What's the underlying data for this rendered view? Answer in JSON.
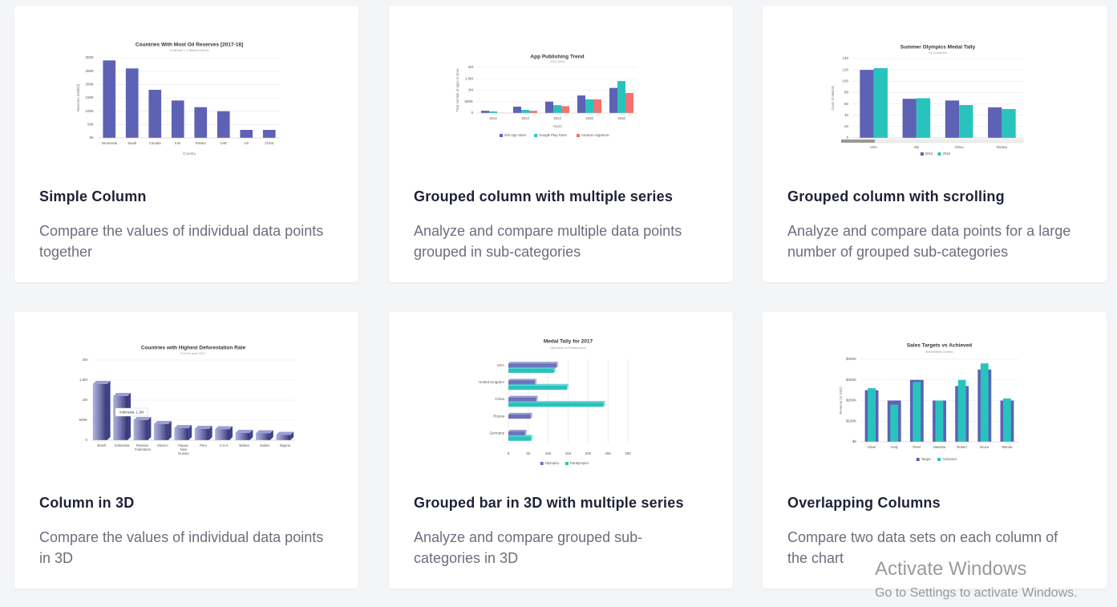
{
  "cards": [
    {
      "title": "Simple Column",
      "description": "Compare the values of individual data points together",
      "chart": {
        "type": "column",
        "title": "Countries With Most Oil Reserves [2017-18]",
        "subtitle": "In MMbbl = 1 Million barrels",
        "y_label": "Reserves (MMbbl)",
        "x_label": "Country",
        "categories": [
          "Venezuela",
          "Saudi",
          "Canada",
          "Iran",
          "Russia",
          "UAE",
          "US",
          "China"
        ],
        "values": [
          290000,
          260000,
          180000,
          140000,
          115000,
          100000,
          30000,
          30000
        ],
        "color": "#5d62b5",
        "ylim": [
          0,
          300000
        ],
        "yticks": [
          {
            "value": 0,
            "label": "0K"
          },
          {
            "value": 50000,
            "label": "50K"
          },
          {
            "value": 100000,
            "label": "100K"
          },
          {
            "value": 150000,
            "label": "150K"
          },
          {
            "value": 200000,
            "label": "200K"
          },
          {
            "value": 250000,
            "label": "250K"
          },
          {
            "value": 300000,
            "label": "300K"
          }
        ],
        "grid": true
      }
    },
    {
      "title": "Grouped column with multiple series",
      "description": "Analyze and compare multiple data points grouped in sub-categories",
      "chart": {
        "type": "column",
        "title": "App Publishing Trend",
        "subtitle": "2012-2016",
        "y_label": "Total number of apps in store",
        "x_label": "Years",
        "categories": [
          "2012",
          "2013",
          "2014",
          "2015",
          "2016"
        ],
        "series": [
          {
            "name": "iOS App Store",
            "color": "#5d62b5",
            "values": [
              100000,
              280000,
              500000,
              770000,
              1100000
            ]
          },
          {
            "name": "Google Play Store",
            "color": "#29c3be",
            "values": [
              70000,
              140000,
              350000,
              600000,
              1400000
            ]
          },
          {
            "name": "Amazon AppStore",
            "color": "#f2726f",
            "values": [
              10000,
              100000,
              300000,
              600000,
              880000
            ]
          }
        ],
        "ylim": [
          0,
          2000000
        ],
        "yticks": [
          0,
          {
            "value": 500000,
            "label": "500K"
          },
          {
            "value": 1000000,
            "label": "1M"
          },
          {
            "value": 1500000,
            "label": "1.5M"
          },
          {
            "value": 2000000,
            "label": "2M"
          }
        ],
        "grid": true,
        "legend": "bottom"
      }
    },
    {
      "title": "Grouped column with scrolling",
      "description": "Analyze and compare data points for a large number of grouped sub-categories",
      "chart": {
        "type": "column",
        "title": "Summer Olympics Medal Tally",
        "subtitle": "by Countries",
        "y_label": "Count of Medals",
        "scroll": true,
        "categories": [
          "USA",
          "GB",
          "China",
          "Russia"
        ],
        "series": [
          {
            "name": "2012",
            "color": "#5d62b5",
            "values": [
              120,
              69,
              66,
              54
            ]
          },
          {
            "name": "2016",
            "color": "#29c3be",
            "values": [
              123,
              70,
              58,
              51
            ]
          }
        ],
        "ylim": [
          0,
          140
        ],
        "yticks": [
          0,
          20,
          40,
          60,
          80,
          100,
          120,
          140
        ],
        "grid": true,
        "legend": "bottom"
      }
    },
    {
      "title": "Column in 3D",
      "description": "Compare the values of individual data points in 3D",
      "chart": {
        "type": "column3d",
        "title": "Countries with Highest Deforestation Rate",
        "subtitle": "For the year 2017",
        "categories": [
          "Brazil",
          "Indonesia",
          "Russian Federation",
          "Mexico",
          "Papua New Guinea",
          "Peru",
          "U.S.A",
          "Bolivia",
          "Sudan",
          "Nigeria"
        ],
        "values": [
          1400000,
          1100000,
          500000,
          400000,
          300000,
          280000,
          270000,
          180000,
          170000,
          130000
        ],
        "color": "#6e72bd",
        "tooltip": "Indonesia, 1.1M",
        "ylim": [
          0,
          2000000
        ],
        "yticks": [
          0,
          {
            "value": 500000,
            "label": "500K"
          },
          {
            "value": 1000000,
            "label": "1M"
          },
          {
            "value": 1500000,
            "label": "1.5M"
          },
          {
            "value": 2000000,
            "label": "2M"
          }
        ],
        "grid": true
      }
    },
    {
      "title": "Grouped bar in 3D with multiple series",
      "description": "Analyze and compare grouped sub-categories in 3D",
      "chart": {
        "type": "bar3d",
        "title": "Medal Tally for 2017",
        "subtitle": "Olympics vs Paralympics",
        "categories": [
          "USA",
          "United Kingdom",
          "China",
          "Russia",
          "Germany"
        ],
        "series": [
          {
            "name": "Olympics",
            "color": "#6e72bd",
            "values": [
              121,
              67,
              70,
              56,
              42
            ]
          },
          {
            "name": "Paralympics",
            "color": "#29c3be",
            "values": [
              115,
              147,
              239,
              null,
              57
            ]
          }
        ],
        "xlim": [
          0,
          300
        ],
        "xticks": [
          0,
          50,
          100,
          150,
          200,
          250,
          300
        ],
        "grid": true,
        "legend": "bottom"
      }
    },
    {
      "title": "Overlapping Columns",
      "description": "Compare two data sets on each column of the chart",
      "chart": {
        "type": "overlapped",
        "title": "Sales Targets vs Achieved",
        "subtitle": "Bakersfield Central",
        "y_label": "Revenue (In USD)",
        "categories": [
          "Oliver",
          "Andy",
          "Peter",
          "Natasha",
          "Robert",
          "Bruce",
          "Wanda"
        ],
        "series": [
          {
            "name": "Target",
            "color": "#5d62b5",
            "values": [
              250000,
              200000,
              300000,
              200000,
              270000,
              350000,
              200000
            ]
          },
          {
            "name": "Achieved",
            "color": "#29c3be",
            "values": [
              260000,
              180000,
              290000,
              200000,
              300000,
              380000,
              210000
            ]
          }
        ],
        "ylim": [
          0,
          400000
        ],
        "yticks": [
          {
            "value": 0,
            "label": "$0"
          },
          {
            "value": 100000,
            "label": "$100K"
          },
          {
            "value": 200000,
            "label": "$200K"
          },
          {
            "value": 300000,
            "label": "$300K"
          },
          {
            "value": 400000,
            "label": "$400K"
          }
        ],
        "grid": true,
        "legend": "bottom"
      }
    }
  ],
  "watermark": {
    "title": "Activate Windows",
    "text": "Go to Settings to activate Windows."
  }
}
